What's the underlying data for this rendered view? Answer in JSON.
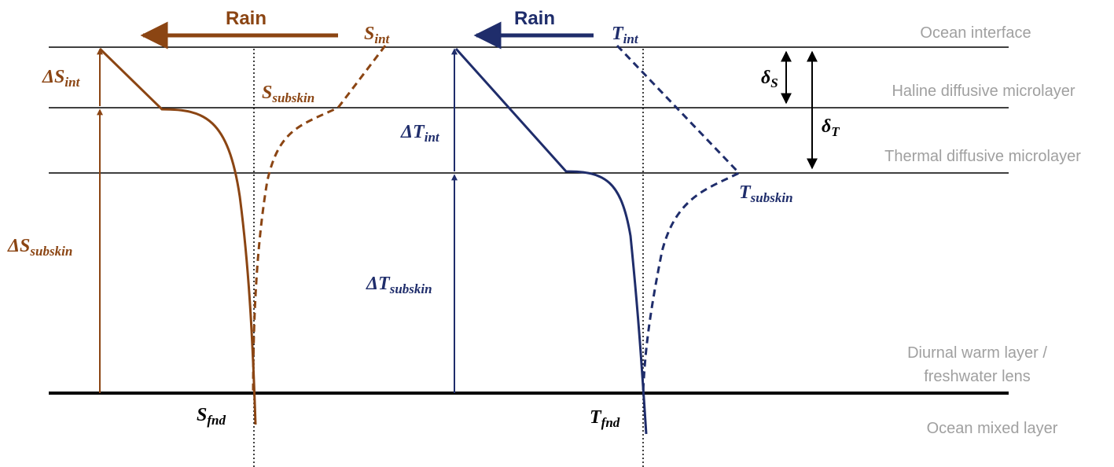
{
  "title_labels": {
    "rain_salinity": "Rain",
    "rain_temperature": "Rain"
  },
  "salinity": {
    "int": {
      "base": "S",
      "sub": "int"
    },
    "subskin": {
      "base": "S",
      "sub": "subskin"
    },
    "fnd": {
      "base": "S",
      "sub": "fnd"
    },
    "delta_int": {
      "base": "ΔS",
      "sub": "int"
    },
    "delta_subskin": {
      "base": "ΔS",
      "sub": "subskin"
    }
  },
  "temperature": {
    "int": {
      "base": "T",
      "sub": "int"
    },
    "subskin": {
      "base": "T",
      "sub": "subskin"
    },
    "fnd": {
      "base": "T",
      "sub": "fnd"
    },
    "delta_int": {
      "base": "ΔT",
      "sub": "int"
    },
    "delta_subskin": {
      "base": "ΔT",
      "sub": "subskin"
    }
  },
  "thickness": {
    "haline": {
      "base": "δ",
      "sub": "S"
    },
    "thermal": {
      "base": "δ",
      "sub": "T"
    }
  },
  "layers": [
    "Ocean interface",
    "Haline diffusive microlayer",
    "Thermal diffusive microlayer",
    "Diurnal warm layer /",
    "freshwater lens",
    "Ocean mixed layer"
  ]
}
